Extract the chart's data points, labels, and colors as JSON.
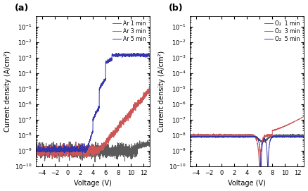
{
  "fig_width": 4.38,
  "fig_height": 2.71,
  "dpi": 100,
  "xlabel": "Voltage (V)",
  "ylabel": "Current density (A/cm²)",
  "xticks": [
    -4,
    -2,
    0,
    2,
    4,
    6,
    8,
    10,
    12
  ],
  "panel_a_label": "(a)",
  "panel_b_label": "(b)",
  "legend_a": [
    "Ar 1 min",
    "Ar 3 min",
    "Ar 5 min"
  ],
  "legend_b": [
    "O₂  1 min",
    "O₂  3 min",
    "O₂  5 min"
  ],
  "color_1min": "#5a5a5a",
  "color_3min": "#cc5555",
  "color_5min": "#3333aa",
  "linewidth": 0.7
}
